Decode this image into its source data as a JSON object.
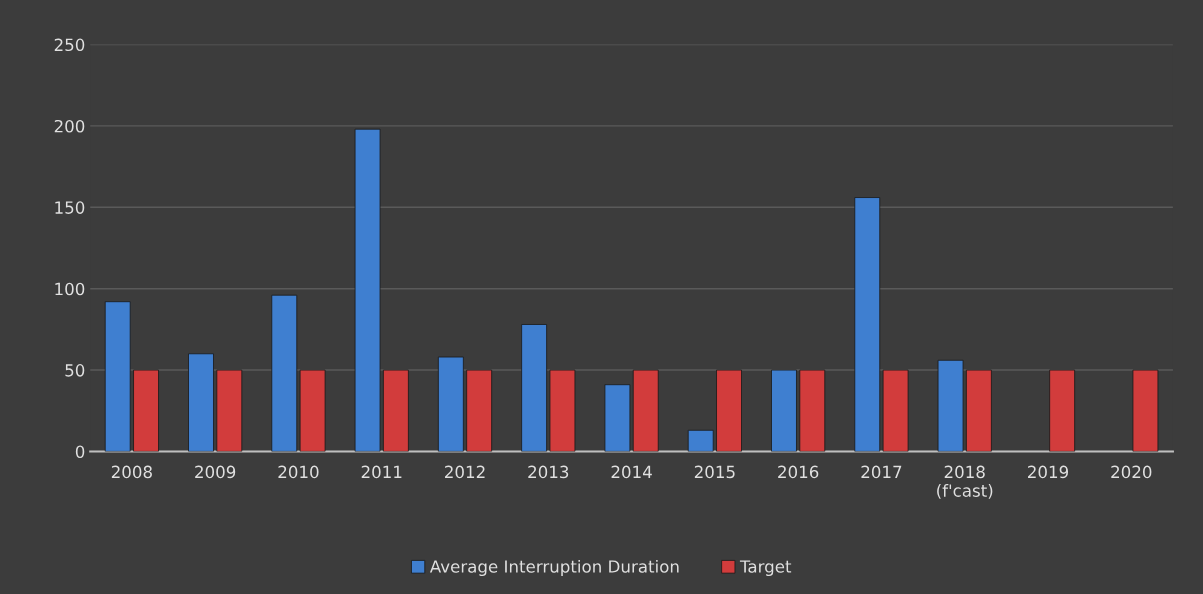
{
  "chart_data": {
    "type": "bar",
    "categories": [
      "2008",
      "2009",
      "2010",
      "2011",
      "2012",
      "2013",
      "2014",
      "2015",
      "2016",
      "2017",
      "2018\n(f'cast)",
      "2019",
      "2020"
    ],
    "series": [
      {
        "name": "Average Interruption Duration",
        "color": "#3f7fd0",
        "values": [
          92,
          60,
          96,
          198,
          58,
          78,
          41,
          13,
          50,
          156,
          56,
          null,
          null
        ]
      },
      {
        "name": "Target",
        "color": "#d23c3c",
        "values": [
          50,
          50,
          50,
          50,
          50,
          50,
          50,
          50,
          50,
          50,
          50,
          50,
          50
        ]
      }
    ],
    "ylim": [
      0,
      250
    ],
    "yticks": [
      0,
      50,
      100,
      150,
      200,
      250
    ],
    "grid": "y",
    "legend": "bottom"
  }
}
